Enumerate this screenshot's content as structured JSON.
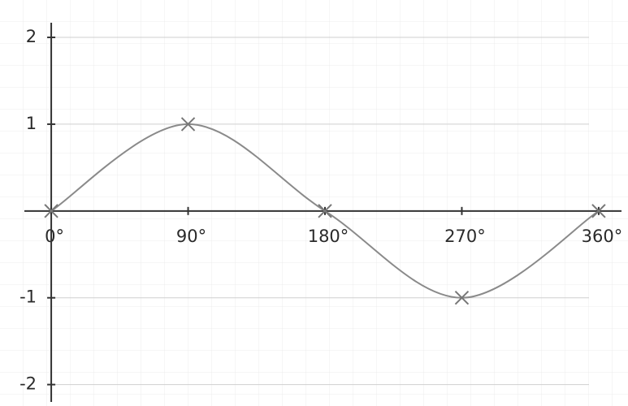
{
  "chart_data": {
    "type": "line",
    "x": [
      0,
      90,
      180,
      270,
      360
    ],
    "values": [
      0,
      1,
      0,
      -1,
      0
    ],
    "xlim": [
      -15,
      375
    ],
    "xticks": [
      {
        "value": 0,
        "label": "0°"
      },
      {
        "value": 90,
        "label": "90°"
      },
      {
        "value": 180,
        "label": "180°"
      },
      {
        "value": 270,
        "label": "270°"
      },
      {
        "value": 360,
        "label": "360°"
      }
    ],
    "ylim": [
      -2.2,
      2.15
    ],
    "yticks": [
      2,
      1,
      -1,
      -2
    ],
    "grid": true,
    "color": "#8a8a8a"
  }
}
